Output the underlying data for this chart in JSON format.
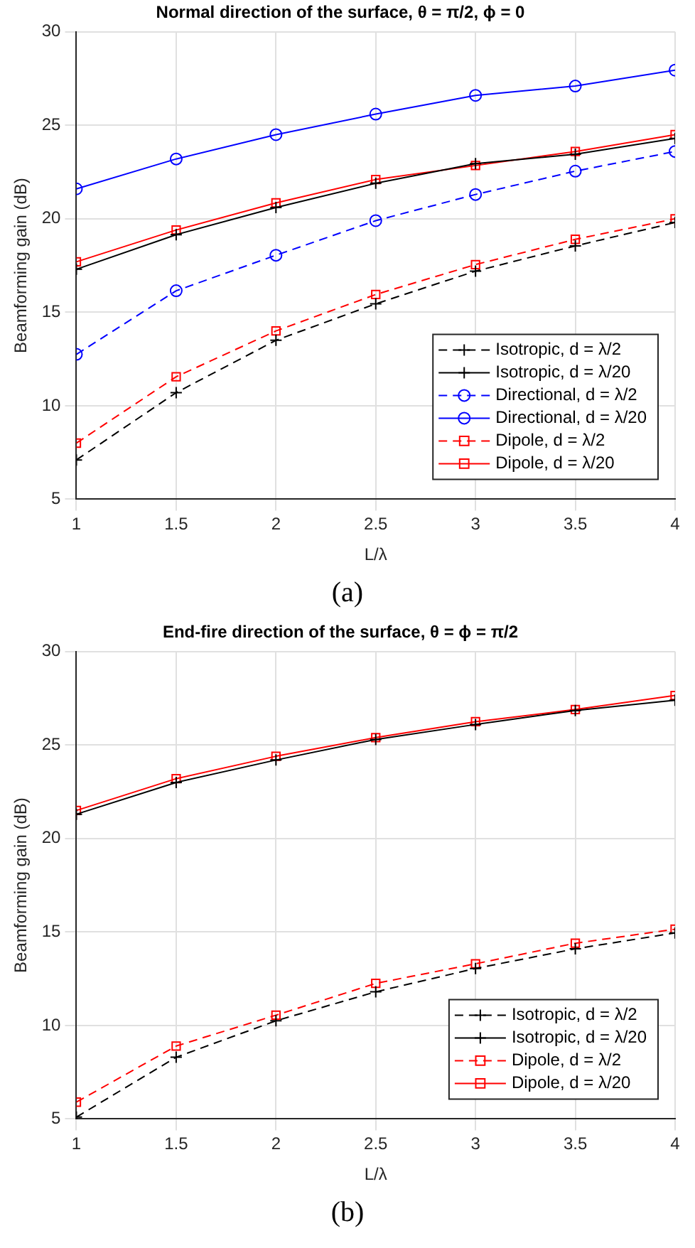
{
  "chart_data": [
    {
      "type": "line",
      "title": "Normal direction of the surface, θ = π/2, ϕ = 0",
      "xlabel": "L/λ",
      "ylabel": "Beamforming gain (dB)",
      "x": [
        1,
        1.5,
        2,
        2.5,
        3,
        3.5,
        4
      ],
      "xlim": [
        1,
        4
      ],
      "xticks": [
        1,
        1.5,
        2,
        2.5,
        3,
        3.5,
        4
      ],
      "ylim": [
        5,
        30
      ],
      "yticks": [
        5,
        10,
        15,
        20,
        25,
        30
      ],
      "grid": true,
      "legend": "bottom right",
      "annotations": [
        "(a)"
      ],
      "series": [
        {
          "name": "Isotropic, d = λ/2",
          "color": "#000000",
          "marker": "cross",
          "line_style": "dashed",
          "values": [
            7.1,
            10.7,
            13.5,
            15.45,
            17.2,
            18.55,
            19.8
          ]
        },
        {
          "name": "Isotropic, d = λ/20",
          "color": "#000000",
          "marker": "cross",
          "line_style": "solid",
          "values": [
            17.3,
            19.15,
            20.6,
            21.9,
            22.95,
            23.45,
            24.3
          ]
        },
        {
          "name": "Directional, d = λ/2",
          "color": "#0000ff",
          "marker": "circle",
          "line_style": "dashed",
          "values": [
            12.75,
            16.15,
            18.05,
            19.9,
            21.3,
            22.55,
            23.6
          ]
        },
        {
          "name": "Directional, d = λ/20",
          "color": "#0000ff",
          "marker": "circle",
          "line_style": "solid",
          "values": [
            21.6,
            23.2,
            24.5,
            25.6,
            26.6,
            27.1,
            27.95
          ]
        },
        {
          "name": "Dipole, d = λ/2",
          "color": "#ff0000",
          "marker": "square",
          "line_style": "dashed",
          "values": [
            8.0,
            11.55,
            14.0,
            15.95,
            17.55,
            18.9,
            20.0
          ]
        },
        {
          "name": "Dipole, d = λ/20",
          "color": "#ff0000",
          "marker": "square",
          "line_style": "solid",
          "values": [
            17.7,
            19.4,
            20.85,
            22.1,
            22.85,
            23.6,
            24.5
          ]
        }
      ]
    },
    {
      "type": "line",
      "title": "End-fire direction of the surface, θ = ϕ = π/2",
      "xlabel": "L/λ",
      "ylabel": "Beamforming gain (dB)",
      "x": [
        1,
        1.5,
        2,
        2.5,
        3,
        3.5,
        4
      ],
      "xlim": [
        1,
        4
      ],
      "xticks": [
        1,
        1.5,
        2,
        2.5,
        3,
        3.5,
        4
      ],
      "ylim": [
        5,
        30
      ],
      "yticks": [
        5,
        10,
        15,
        20,
        25,
        30
      ],
      "grid": true,
      "legend": "bottom right",
      "annotations": [
        "(b)"
      ],
      "series": [
        {
          "name": "Isotropic, d = λ/2",
          "color": "#000000",
          "marker": "cross",
          "line_style": "dashed",
          "values": [
            5.1,
            8.3,
            10.25,
            11.8,
            13.05,
            14.1,
            14.95
          ]
        },
        {
          "name": "Isotropic, d = λ/20",
          "color": "#000000",
          "marker": "cross",
          "line_style": "solid",
          "values": [
            21.3,
            23.0,
            24.2,
            25.3,
            26.1,
            26.85,
            27.4
          ]
        },
        {
          "name": "Dipole, d = λ/2",
          "color": "#ff0000",
          "marker": "square",
          "line_style": "dashed",
          "values": [
            5.9,
            8.9,
            10.55,
            12.25,
            13.3,
            14.4,
            15.15
          ]
        },
        {
          "name": "Dipole, d = λ/20",
          "color": "#ff0000",
          "marker": "square",
          "line_style": "solid",
          "values": [
            21.5,
            23.2,
            24.4,
            25.4,
            26.25,
            26.9,
            27.65
          ]
        }
      ]
    }
  ]
}
